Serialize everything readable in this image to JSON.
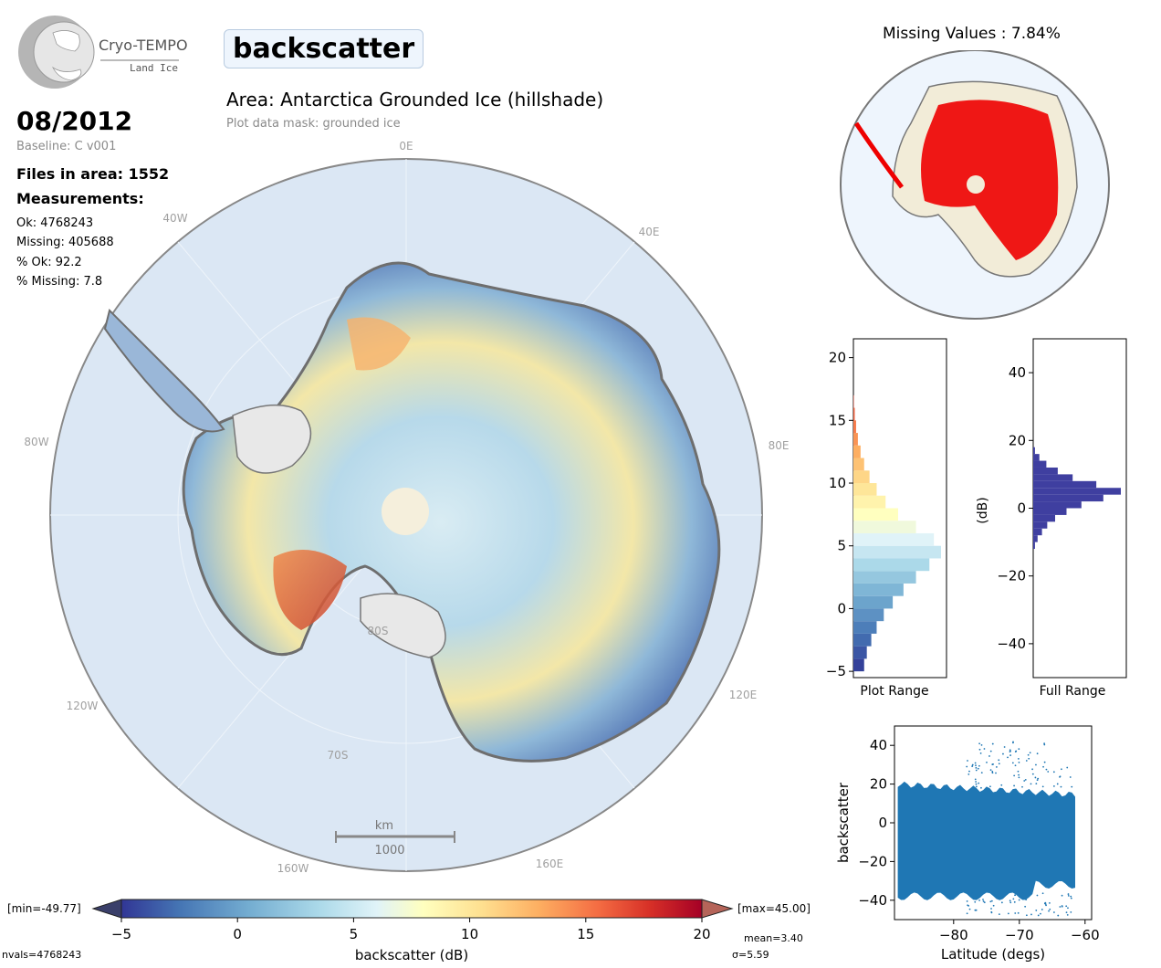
{
  "logo": {
    "name": "Cryo-TEMPO",
    "subtitle": "Land Ice"
  },
  "header": {
    "parameter": "backscatter",
    "area": "Area: Antarctica Grounded Ice (hillshade)",
    "mask": "Plot data mask: grounded ice"
  },
  "info": {
    "date": "08/2012",
    "baseline": "Baseline: C v001",
    "files": "Files in area: 1552",
    "measurements_label": "Measurements:",
    "ok": "Ok: 4768243",
    "missing": "Missing: 405688",
    "pct_ok": "% Ok: 92.2",
    "pct_missing": "% Missing: 7.8"
  },
  "map": {
    "lon_labels": [
      "0E",
      "40E",
      "80E",
      "120E",
      "160E",
      "160W",
      "120W",
      "80W",
      "40W"
    ],
    "lat_labels": [
      "80S",
      "70S"
    ],
    "scalebar_unit": "km",
    "scalebar_value": "1000"
  },
  "missing_map": {
    "title": "Missing Values : 7.84%"
  },
  "colorbar": {
    "label": "backscatter (dB)",
    "ticks": [
      "−5",
      "0",
      "5",
      "10",
      "15",
      "20"
    ],
    "min_label": "[min=-49.77]",
    "max_label": "[max=45.00]",
    "mean": "mean=3.40",
    "sigma": "σ=5.59",
    "nvals": "nvals=4768243"
  },
  "colors": {
    "low": "#313695",
    "mid": "#ffffbf",
    "high": "#a50026",
    "land_grey": "#e3e3e3",
    "ocean": "#dbe7f4",
    "missing_red": "#ee0000",
    "hist_full": "#3f3fa0",
    "scatter": "#1f77b4"
  },
  "chart_data": [
    {
      "type": "bar",
      "title": "",
      "xlabel": "Plot Range",
      "ylabel": "",
      "orientation": "horizontal",
      "ylim": [
        -5.5,
        21.5
      ],
      "yticks": [
        "−5",
        "0",
        "5",
        "10",
        "15",
        "20"
      ],
      "bins": [
        -5,
        -4,
        -3,
        -2,
        -1,
        0,
        1,
        2,
        3,
        4,
        5,
        6,
        7,
        8,
        9,
        10,
        11,
        12,
        13,
        14,
        15,
        16
      ],
      "counts": [
        0.12,
        0.15,
        0.2,
        0.26,
        0.34,
        0.44,
        0.56,
        0.7,
        0.85,
        0.98,
        0.9,
        0.7,
        0.5,
        0.36,
        0.26,
        0.18,
        0.12,
        0.08,
        0.05,
        0.03,
        0.015,
        0.005
      ]
    },
    {
      "type": "bar",
      "title": "",
      "xlabel": "Full Range",
      "ylabel": "(dB)",
      "orientation": "horizontal",
      "ylim": [
        -50,
        50
      ],
      "yticks": [
        "−40",
        "−20",
        "0",
        "20",
        "40"
      ],
      "bins": [
        -12,
        -10,
        -8,
        -6,
        -4,
        -2,
        0,
        2,
        4,
        6,
        8,
        10,
        12,
        14,
        16
      ],
      "counts": [
        0.02,
        0.05,
        0.1,
        0.16,
        0.25,
        0.38,
        0.55,
        0.8,
        1.0,
        0.72,
        0.45,
        0.28,
        0.15,
        0.07,
        0.02
      ]
    },
    {
      "type": "scatter",
      "title": "",
      "xlabel": "Latitude (degs)",
      "ylabel": "backscatter",
      "xlim": [
        -89,
        -59
      ],
      "ylim": [
        -50,
        50
      ],
      "xticks": [
        "−80",
        "−70",
        "−60"
      ],
      "yticks": [
        "−40",
        "−20",
        "0",
        "20",
        "40"
      ]
    }
  ]
}
